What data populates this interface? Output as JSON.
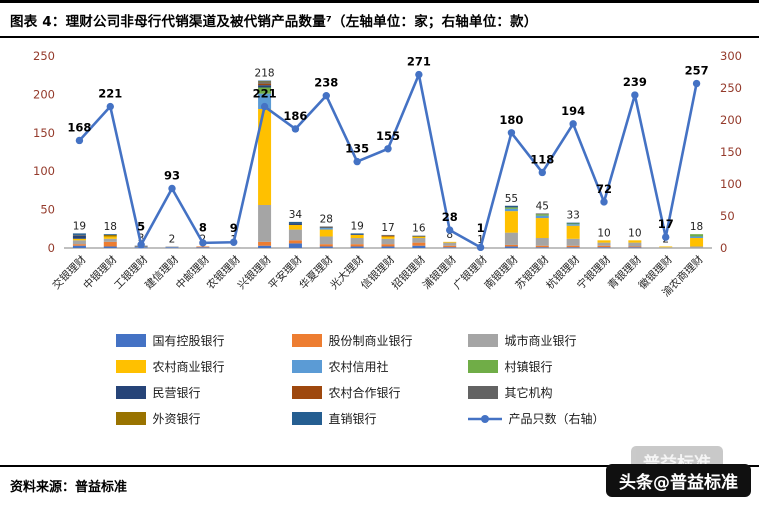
{
  "header": {
    "title": "图表 4：理财公司非母行代销渠道及被代销产品数量⁷（左轴单位：家；右轴单位：款）"
  },
  "footer": {
    "source": "资料来源：普益标准"
  },
  "watermark": {
    "ghost": "普益标准",
    "badge": "头条@普益标准"
  },
  "colors": {
    "axis_tick": "#943a2b",
    "category_label": "#262626",
    "bar_label": "#1f1f1f",
    "line_label": "#000000",
    "axis_line": "#808080"
  },
  "chart_data": {
    "type": "bar",
    "subtype": "stacked-bars-with-line-overlay",
    "title": "图表 4：理财公司非母行代销渠道及被代销产品数量（左轴单位：家；右轴单位：款）",
    "grid": false,
    "legend_position": "bottom",
    "categories": [
      "交银理财",
      "中银理财",
      "工银理财",
      "建信理财",
      "中邮理财",
      "农银理财",
      "兴银理财",
      "平安理财",
      "华夏理财",
      "光大理财",
      "信银理财",
      "招银理财",
      "浦银理财",
      "广银理财",
      "南银理财",
      "苏银理财",
      "杭银理财",
      "宁银理财",
      "青银理财",
      "徽银理财",
      "渝农商理财"
    ],
    "left_axis": {
      "unit": "家",
      "min": 0,
      "max": 250,
      "ticks": [
        0,
        50,
        100,
        150,
        200,
        250
      ]
    },
    "right_axis": {
      "unit": "款",
      "min": 0,
      "max": 300,
      "ticks": [
        0,
        50,
        100,
        150,
        200,
        250,
        300
      ]
    },
    "bar_totals": [
      19,
      18,
      3,
      2,
      2,
      1,
      218,
      34,
      28,
      19,
      17,
      16,
      8,
      1,
      55,
      45,
      33,
      10,
      10,
      2,
      18
    ],
    "series": [
      {
        "name": "国有控股银行",
        "color": "#4472C4",
        "values": [
          3,
          2,
          1,
          1,
          1,
          0,
          3,
          6,
          2,
          2,
          2,
          3,
          1,
          0,
          2,
          1,
          1,
          1,
          1,
          0,
          0
        ]
      },
      {
        "name": "股份制商业银行",
        "color": "#ED7D31",
        "values": [
          2,
          6,
          0,
          0,
          1,
          0,
          5,
          4,
          3,
          3,
          3,
          4,
          2,
          0,
          2,
          2,
          2,
          2,
          1,
          0,
          0
        ]
      },
      {
        "name": "城市商业银行",
        "color": "#A5A5A5",
        "values": [
          5,
          4,
          1,
          1,
          0,
          1,
          48,
          14,
          10,
          8,
          7,
          6,
          4,
          1,
          16,
          10,
          9,
          4,
          5,
          1,
          2
        ]
      },
      {
        "name": "农村商业银行",
        "color": "#FFC000",
        "values": [
          2,
          3,
          0,
          0,
          0,
          0,
          125,
          6,
          9,
          4,
          3,
          2,
          1,
          0,
          28,
          26,
          17,
          3,
          3,
          1,
          11
        ]
      },
      {
        "name": "农村信用社",
        "color": "#5B9BD5",
        "values": [
          0,
          0,
          0,
          0,
          0,
          0,
          20,
          0,
          2,
          0,
          0,
          0,
          0,
          0,
          3,
          3,
          2,
          0,
          0,
          0,
          2
        ]
      },
      {
        "name": "村镇银行",
        "color": "#70AD47",
        "values": [
          0,
          0,
          0,
          0,
          0,
          0,
          8,
          0,
          0,
          0,
          0,
          0,
          0,
          0,
          2,
          2,
          1,
          0,
          0,
          0,
          3
        ]
      },
      {
        "name": "民营银行",
        "color": "#264478",
        "values": [
          4,
          0,
          0,
          0,
          0,
          0,
          3,
          2,
          0,
          1,
          0,
          1,
          0,
          0,
          1,
          0,
          0,
          0,
          0,
          0,
          0
        ]
      },
      {
        "name": "农村合作银行",
        "color": "#9E480E",
        "values": [
          0,
          0,
          0,
          0,
          0,
          0,
          2,
          0,
          0,
          0,
          1,
          0,
          0,
          0,
          0,
          0,
          0,
          0,
          0,
          0,
          0
        ]
      },
      {
        "name": "其它机构",
        "color": "#636363",
        "values": [
          1,
          0,
          1,
          0,
          0,
          0,
          2,
          0,
          2,
          0,
          1,
          0,
          0,
          0,
          0,
          1,
          0,
          0,
          0,
          0,
          0
        ]
      },
      {
        "name": "外资银行",
        "color": "#997300",
        "values": [
          0,
          2,
          0,
          0,
          0,
          0,
          1,
          0,
          0,
          0,
          0,
          0,
          0,
          0,
          0,
          0,
          0,
          0,
          0,
          0,
          0
        ]
      },
      {
        "name": "直销银行",
        "color": "#255E91",
        "values": [
          2,
          1,
          0,
          0,
          0,
          0,
          1,
          2,
          0,
          1,
          0,
          0,
          0,
          0,
          1,
          0,
          1,
          0,
          0,
          0,
          0
        ]
      }
    ],
    "line_series": {
      "name": "产品只数（右轴）",
      "axis": "right",
      "color": "#4472C4",
      "values": [
        168,
        221,
        5,
        93,
        8,
        9,
        221,
        186,
        238,
        135,
        155,
        271,
        28,
        1,
        180,
        118,
        194,
        72,
        239,
        17,
        257
      ]
    },
    "legend": [
      {
        "name": "国有控股银行",
        "color": "#4472C4",
        "type": "box"
      },
      {
        "name": "股份制商业银行",
        "color": "#ED7D31",
        "type": "box"
      },
      {
        "name": "城市商业银行",
        "color": "#A5A5A5",
        "type": "box"
      },
      {
        "name": "农村商业银行",
        "color": "#FFC000",
        "type": "box"
      },
      {
        "name": "农村信用社",
        "color": "#5B9BD5",
        "type": "box"
      },
      {
        "name": "村镇银行",
        "color": "#70AD47",
        "type": "box"
      },
      {
        "name": "民营银行",
        "color": "#264478",
        "type": "box"
      },
      {
        "name": "农村合作银行",
        "color": "#9E480E",
        "type": "box"
      },
      {
        "name": "其它机构",
        "color": "#636363",
        "type": "box"
      },
      {
        "name": "外资银行",
        "color": "#997300",
        "type": "box"
      },
      {
        "name": "直销银行",
        "color": "#255E91",
        "type": "box"
      },
      {
        "name": "产品只数（右轴）",
        "color": "#4472C4",
        "type": "line"
      }
    ]
  }
}
